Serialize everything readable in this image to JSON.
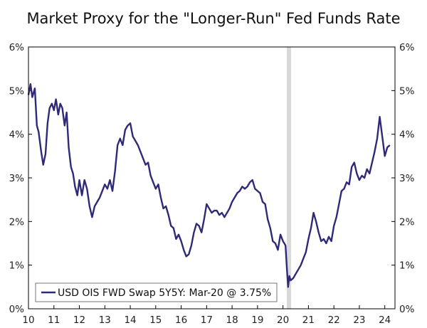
{
  "chart_data": {
    "type": "line",
    "title": "Market Proxy for the \"Longer-Run\" Fed Funds Rate",
    "xlabel": "",
    "ylabel": "",
    "xlim": [
      2010.0,
      2024.4
    ],
    "ylim": [
      0,
      6
    ],
    "grid": false,
    "x_ticks": [
      {
        "value": 2010,
        "label": "10"
      },
      {
        "value": 2011,
        "label": "11"
      },
      {
        "value": 2012,
        "label": "12"
      },
      {
        "value": 2013,
        "label": "13"
      },
      {
        "value": 2014,
        "label": "14"
      },
      {
        "value": 2015,
        "label": "15"
      },
      {
        "value": 2016,
        "label": "16"
      },
      {
        "value": 2017,
        "label": "17"
      },
      {
        "value": 2018,
        "label": "18"
      },
      {
        "value": 2019,
        "label": "19"
      },
      {
        "value": 2020,
        "label": "20"
      },
      {
        "value": 2021,
        "label": "21"
      },
      {
        "value": 2022,
        "label": "22"
      },
      {
        "value": 2023,
        "label": "23"
      },
      {
        "value": 2024,
        "label": "24"
      }
    ],
    "y_ticks": [
      {
        "value": 0,
        "label": "0%"
      },
      {
        "value": 1,
        "label": "1%"
      },
      {
        "value": 2,
        "label": "2%"
      },
      {
        "value": 3,
        "label": "3%"
      },
      {
        "value": 4,
        "label": "4%"
      },
      {
        "value": 5,
        "label": "5%"
      },
      {
        "value": 6,
        "label": "6%"
      }
    ],
    "shaded_region": {
      "x_start": 2020.15,
      "x_end": 2020.32,
      "color": "#d9d9d9"
    },
    "legend": {
      "label": "USD OIS FWD Swap 5Y5Y: Mar-20 @ 3.75%",
      "placement": "bottom-left"
    },
    "series": [
      {
        "name": "USD OIS FWD Swap 5Y5Y",
        "color": "#2e2a78",
        "x": [
          2010.0,
          2010.08,
          2010.15,
          2010.25,
          2010.33,
          2010.4,
          2010.5,
          2010.58,
          2010.67,
          2010.75,
          2010.83,
          2010.92,
          2011.0,
          2011.08,
          2011.17,
          2011.25,
          2011.33,
          2011.42,
          2011.5,
          2011.58,
          2011.67,
          2011.75,
          2011.83,
          2011.92,
          2012.0,
          2012.1,
          2012.2,
          2012.3,
          2012.4,
          2012.5,
          2012.6,
          2012.7,
          2012.8,
          2012.9,
          2013.0,
          2013.1,
          2013.2,
          2013.3,
          2013.4,
          2013.5,
          2013.6,
          2013.7,
          2013.8,
          2013.9,
          2014.0,
          2014.1,
          2014.2,
          2014.3,
          2014.4,
          2014.5,
          2014.6,
          2014.7,
          2014.8,
          2014.9,
          2015.0,
          2015.1,
          2015.2,
          2015.3,
          2015.4,
          2015.5,
          2015.6,
          2015.7,
          2015.8,
          2015.9,
          2016.0,
          2016.1,
          2016.2,
          2016.3,
          2016.4,
          2016.5,
          2016.6,
          2016.7,
          2016.8,
          2016.9,
          2017.0,
          2017.1,
          2017.2,
          2017.3,
          2017.4,
          2017.5,
          2017.6,
          2017.7,
          2017.8,
          2017.9,
          2018.0,
          2018.1,
          2018.2,
          2018.3,
          2018.4,
          2018.5,
          2018.6,
          2018.7,
          2018.8,
          2018.9,
          2019.0,
          2019.1,
          2019.2,
          2019.3,
          2019.4,
          2019.5,
          2019.6,
          2019.7,
          2019.8,
          2019.9,
          2020.0,
          2020.1,
          2020.15,
          2020.2,
          2020.25,
          2020.3,
          2020.4,
          2020.5,
          2020.6,
          2020.7,
          2020.8,
          2020.9,
          2021.0,
          2021.1,
          2021.2,
          2021.3,
          2021.4,
          2021.5,
          2021.6,
          2021.7,
          2021.8,
          2021.9,
          2022.0,
          2022.1,
          2022.2,
          2022.3,
          2022.4,
          2022.5,
          2022.6,
          2022.7,
          2022.8,
          2022.9,
          2023.0,
          2023.1,
          2023.2,
          2023.3,
          2023.4,
          2023.5,
          2023.6,
          2023.7,
          2023.8,
          2023.9,
          2024.0,
          2024.1,
          2024.2
        ],
        "values": [
          4.9,
          5.15,
          4.85,
          5.05,
          4.2,
          4.05,
          3.6,
          3.3,
          3.55,
          4.25,
          4.6,
          4.7,
          4.55,
          4.8,
          4.45,
          4.7,
          4.6,
          4.2,
          4.5,
          3.7,
          3.25,
          3.1,
          2.8,
          2.6,
          2.95,
          2.6,
          2.95,
          2.75,
          2.35,
          2.1,
          2.35,
          2.45,
          2.55,
          2.7,
          2.85,
          2.75,
          2.95,
          2.7,
          3.15,
          3.75,
          3.9,
          3.75,
          4.1,
          4.2,
          4.25,
          3.95,
          3.85,
          3.75,
          3.6,
          3.45,
          3.3,
          3.35,
          3.05,
          2.9,
          2.75,
          2.85,
          2.55,
          2.3,
          2.35,
          2.15,
          1.9,
          1.85,
          1.6,
          1.7,
          1.55,
          1.35,
          1.2,
          1.25,
          1.45,
          1.75,
          1.95,
          1.9,
          1.75,
          2.05,
          2.4,
          2.3,
          2.2,
          2.25,
          2.25,
          2.15,
          2.2,
          2.1,
          2.2,
          2.3,
          2.45,
          2.55,
          2.65,
          2.7,
          2.8,
          2.75,
          2.8,
          2.9,
          2.95,
          2.75,
          2.7,
          2.65,
          2.45,
          2.4,
          2.05,
          1.85,
          1.55,
          1.5,
          1.35,
          1.7,
          1.55,
          1.45,
          0.95,
          0.5,
          0.75,
          0.65,
          0.7,
          0.8,
          0.9,
          1.0,
          1.15,
          1.3,
          1.6,
          1.85,
          2.2,
          2.0,
          1.75,
          1.55,
          1.6,
          1.5,
          1.65,
          1.55,
          1.9,
          2.1,
          2.4,
          2.7,
          2.75,
          2.9,
          2.85,
          3.25,
          3.35,
          3.1,
          2.95,
          3.05,
          3.0,
          3.2,
          3.1,
          3.35,
          3.6,
          3.9,
          4.4,
          3.95,
          3.5,
          3.7,
          3.75
        ]
      }
    ]
  }
}
